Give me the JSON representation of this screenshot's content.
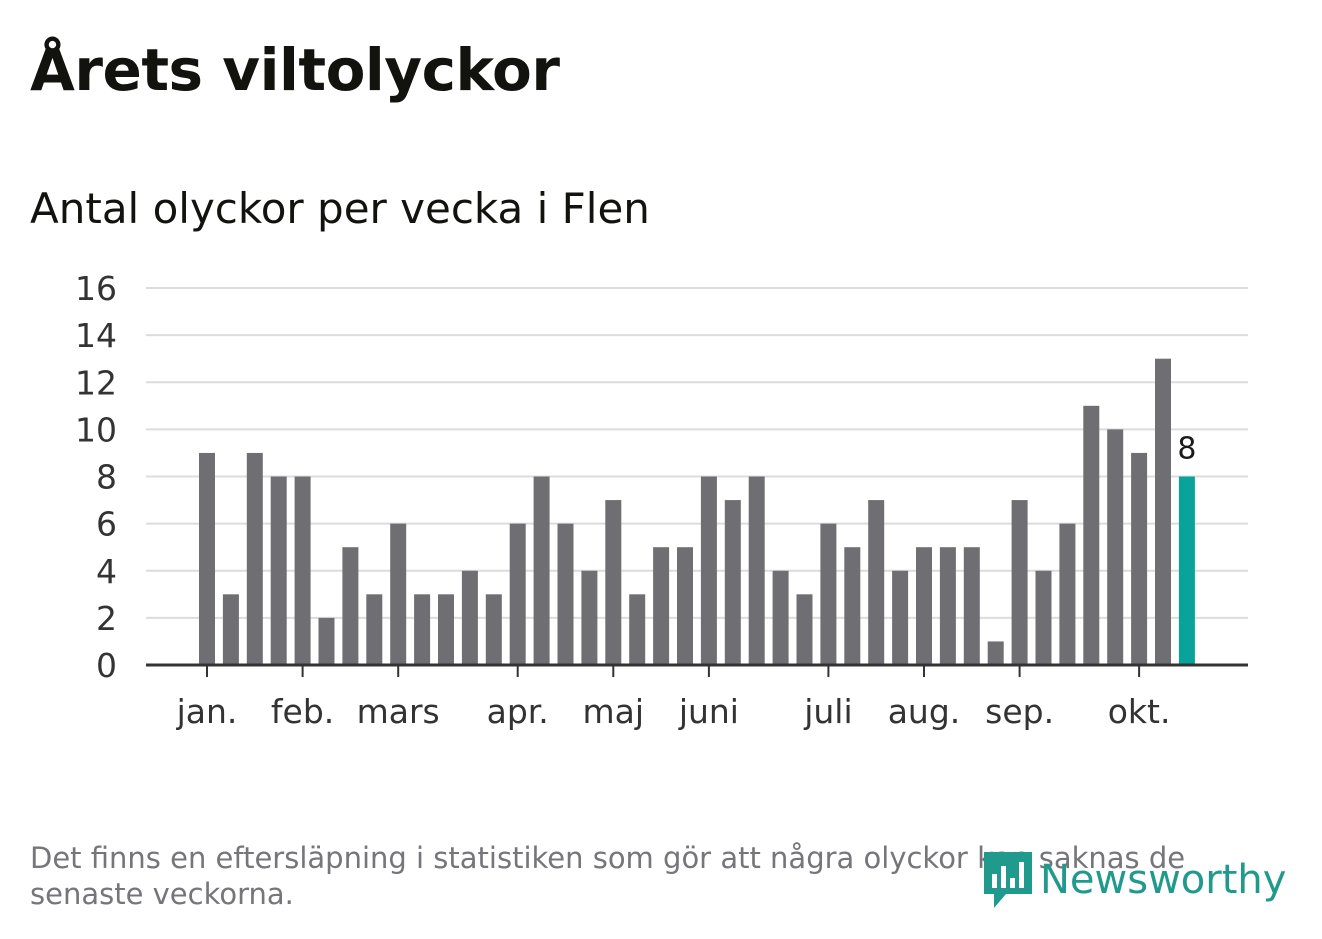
{
  "header": {
    "title": "Årets viltolyckor",
    "subtitle": "Antal olyckor per vecka i Flen"
  },
  "chart_data": {
    "type": "bar",
    "title": "Årets viltolyckor",
    "subtitle": "Antal olyckor per vecka i Flen",
    "xlabel": "",
    "ylabel": "",
    "ylim": [
      0,
      16
    ],
    "yticks": [
      0,
      2,
      4,
      6,
      8,
      10,
      12,
      14,
      16
    ],
    "grid": true,
    "values": [
      9,
      3,
      9,
      8,
      8,
      2,
      5,
      3,
      6,
      3,
      3,
      4,
      3,
      6,
      8,
      6,
      4,
      7,
      3,
      5,
      5,
      8,
      7,
      8,
      4,
      3,
      6,
      5,
      7,
      4,
      5,
      5,
      5,
      1,
      7,
      4,
      6,
      11,
      10,
      9,
      13,
      8
    ],
    "month_ticks": [
      {
        "label": "jan.",
        "week_index": 0
      },
      {
        "label": "feb.",
        "week_index": 4
      },
      {
        "label": "mars",
        "week_index": 8
      },
      {
        "label": "apr.",
        "week_index": 13
      },
      {
        "label": "maj",
        "week_index": 17
      },
      {
        "label": "juni",
        "week_index": 21
      },
      {
        "label": "juli",
        "week_index": 26
      },
      {
        "label": "aug.",
        "week_index": 30
      },
      {
        "label": "sep.",
        "week_index": 34
      },
      {
        "label": "okt.",
        "week_index": 39
      }
    ],
    "highlight": {
      "index": 41,
      "label": "8"
    },
    "colors": {
      "bar": "#6f6e73",
      "highlight": "#0aa39a",
      "grid": "#dcdcdc",
      "axis": "#333333"
    }
  },
  "footer": {
    "note": "Det finns en eftersläpning i statistiken som gör att några olyckor kan saknas de senaste veckorna.",
    "brand": "Newsworthy",
    "brand_color": "#1f9a8c"
  }
}
